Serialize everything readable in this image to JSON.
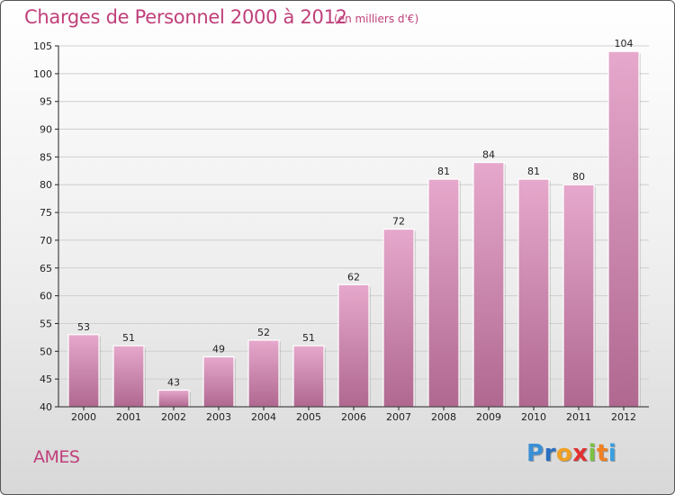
{
  "title": "Charges de Personnel 2000 à 2012",
  "subtitle": "(en milliers d'€)",
  "commune": "AMES",
  "brand": {
    "letters": [
      {
        "ch": "P",
        "color": "#3a8fd6"
      },
      {
        "ch": "r",
        "color": "#2a6fbf"
      },
      {
        "ch": "o",
        "color": "#f0a020"
      },
      {
        "ch": "x",
        "color": "#e03030"
      },
      {
        "ch": "i",
        "color": "#7cc142"
      },
      {
        "ch": "t",
        "color": "#f08020"
      },
      {
        "ch": "i",
        "color": "#3aa0e0"
      }
    ]
  },
  "colors": {
    "bar_top": "#e6a8cc",
    "bar_bottom": "#b06890",
    "text": "#c0407a",
    "axis": "#222222"
  },
  "chart_data": {
    "type": "bar",
    "title": "Charges de Personnel 2000 à 2012",
    "subtitle": "(en milliers d'€)",
    "categories": [
      "2000",
      "2001",
      "2002",
      "2003",
      "2004",
      "2005",
      "2006",
      "2007",
      "2008",
      "2009",
      "2010",
      "2011",
      "2012"
    ],
    "values": [
      53,
      51,
      43,
      49,
      52,
      51,
      62,
      72,
      81,
      84,
      81,
      80,
      104
    ],
    "ylim": [
      40,
      105
    ],
    "yticks": [
      40,
      45,
      50,
      55,
      60,
      65,
      70,
      75,
      80,
      85,
      90,
      95,
      100,
      105
    ],
    "grid": true,
    "xlabel": "",
    "ylabel": ""
  }
}
